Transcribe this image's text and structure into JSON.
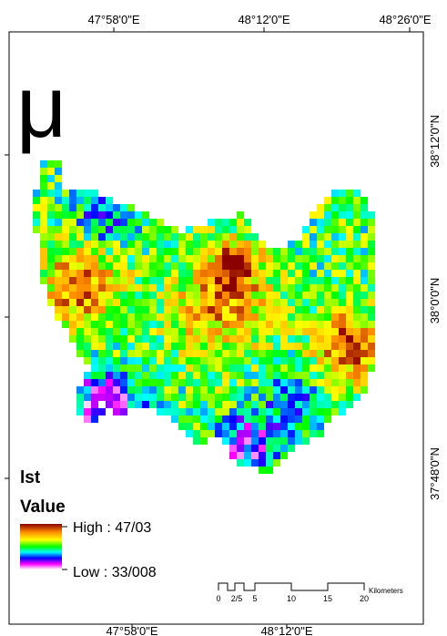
{
  "map": {
    "symbol": "μ",
    "top_labels": [
      "47°58'0\"E",
      "48°12'0\"E",
      "48°26'0\"E"
    ],
    "bottom_labels": [
      "47°58'0\"E",
      "48°12'0\"E"
    ],
    "right_labels": [
      "38°12'0\"N",
      "38°0'0\"N",
      "37°48'0\"N"
    ],
    "legend": {
      "title": "lst",
      "subtitle": "Value",
      "high": "High : 47/03",
      "low": "Low : 33/008"
    },
    "scale_bar": {
      "labels": [
        "0",
        "2/5",
        "5",
        "10",
        "15",
        "20"
      ],
      "unit": "Kilometers"
    }
  }
}
